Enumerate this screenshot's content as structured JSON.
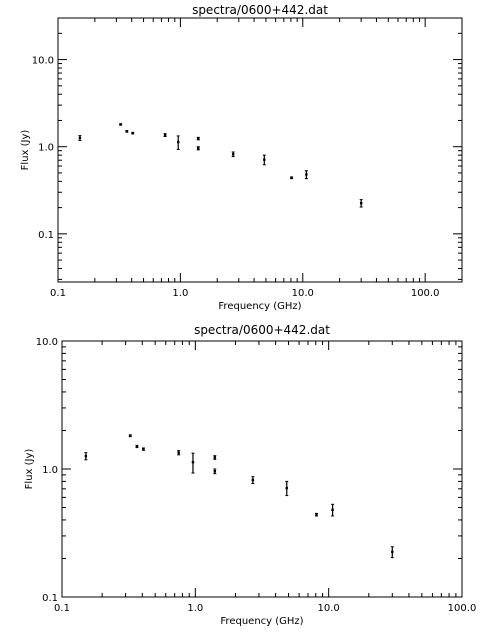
{
  "colors": {
    "background": "#ffffff",
    "ink": "#000000"
  },
  "chart_data": [
    {
      "type": "scatter",
      "title": "spectra/0600+442.dat",
      "xlabel": "Frequency (GHz)",
      "ylabel": "Flux (Jy)",
      "xscale": "log",
      "yscale": "log",
      "xlim": [
        0.1,
        200
      ],
      "ylim": [
        0.028,
        30
      ],
      "grid": false,
      "legend": "none",
      "xticks": [
        {
          "value": 0.1,
          "label": "0.1"
        },
        {
          "value": 1,
          "label": "1.0"
        },
        {
          "value": 10,
          "label": "10.0"
        },
        {
          "value": 100,
          "label": "100.0"
        }
      ],
      "yticks": [
        {
          "value": 0.1,
          "label": "0.1"
        },
        {
          "value": 1,
          "label": "1.0"
        },
        {
          "value": 10,
          "label": "10.0"
        }
      ],
      "points": [
        {
          "x": 0.151,
          "y": 1.26,
          "err": 0.08
        },
        {
          "x": 0.325,
          "y": 1.8,
          "err": 0.03
        },
        {
          "x": 0.365,
          "y": 1.5,
          "err": 0.03
        },
        {
          "x": 0.408,
          "y": 1.43,
          "err": 0.03
        },
        {
          "x": 0.75,
          "y": 1.36,
          "err": 0.05
        },
        {
          "x": 0.96,
          "y": 1.13,
          "err": 0.2
        },
        {
          "x": 1.4,
          "y": 1.24,
          "err": 0.04
        },
        {
          "x": 1.4,
          "y": 0.96,
          "err": 0.04
        },
        {
          "x": 2.7,
          "y": 0.82,
          "err": 0.05
        },
        {
          "x": 4.85,
          "y": 0.71,
          "err": 0.09
        },
        {
          "x": 8.1,
          "y": 0.44,
          "err": 0.01
        },
        {
          "x": 10.7,
          "y": 0.48,
          "err": 0.05
        },
        {
          "x": 30,
          "y": 0.225,
          "err": 0.022
        }
      ]
    },
    {
      "type": "scatter",
      "title": "spectra/0600+442.dat",
      "xlabel": "Frequency (GHz)",
      "ylabel": "Flux (Jy)",
      "xscale": "log",
      "yscale": "log",
      "xlim": [
        0.1,
        100
      ],
      "ylim": [
        0.1,
        10
      ],
      "grid": false,
      "legend": "none",
      "xticks": [
        {
          "value": 0.1,
          "label": "0.1"
        },
        {
          "value": 1,
          "label": "1.0"
        },
        {
          "value": 10,
          "label": "10.0"
        },
        {
          "value": 100,
          "label": "100.0"
        }
      ],
      "yticks": [
        {
          "value": 0.1,
          "label": "0.1"
        },
        {
          "value": 1,
          "label": "1.0"
        },
        {
          "value": 10,
          "label": "10.0"
        }
      ],
      "points": [
        {
          "x": 0.151,
          "y": 1.26,
          "err": 0.08
        },
        {
          "x": 0.325,
          "y": 1.82,
          "err": 0.03
        },
        {
          "x": 0.365,
          "y": 1.5,
          "err": 0.03
        },
        {
          "x": 0.408,
          "y": 1.43,
          "err": 0.03
        },
        {
          "x": 0.75,
          "y": 1.34,
          "err": 0.05
        },
        {
          "x": 0.96,
          "y": 1.13,
          "err": 0.2
        },
        {
          "x": 1.4,
          "y": 1.23,
          "err": 0.04
        },
        {
          "x": 1.4,
          "y": 0.96,
          "err": 0.04
        },
        {
          "x": 2.7,
          "y": 0.82,
          "err": 0.05
        },
        {
          "x": 4.85,
          "y": 0.71,
          "err": 0.09
        },
        {
          "x": 8.1,
          "y": 0.44,
          "err": 0.01
        },
        {
          "x": 10.7,
          "y": 0.48,
          "err": 0.05
        },
        {
          "x": 30,
          "y": 0.225,
          "err": 0.022
        }
      ]
    }
  ]
}
